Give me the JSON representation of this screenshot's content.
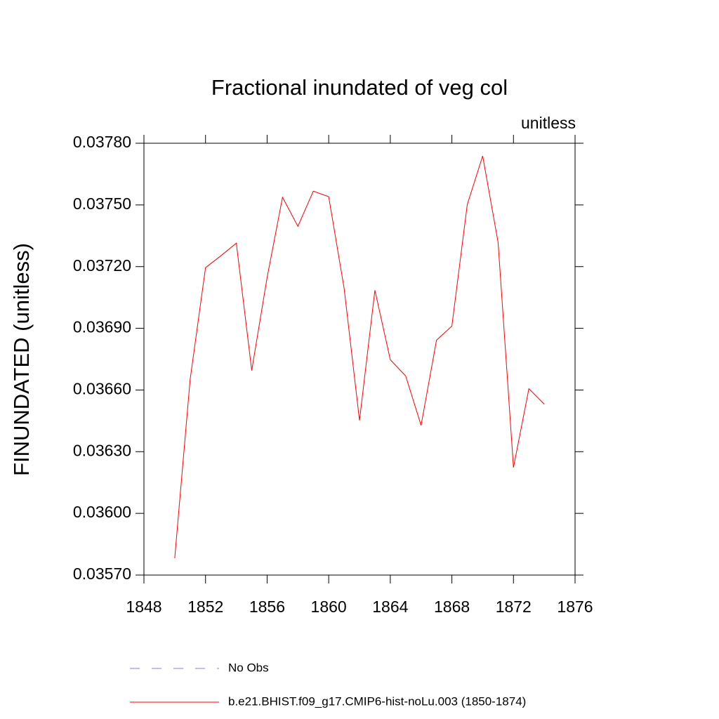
{
  "chart_data": {
    "type": "line",
    "title": "Fractional inundated of veg col",
    "subtitle": "unitless",
    "y_label": "FINUNDATED  (unitless)",
    "x": [
      1850,
      1851,
      1852,
      1853,
      1854,
      1855,
      1856,
      1857,
      1858,
      1859,
      1860,
      1861,
      1862,
      1863,
      1864,
      1865,
      1866,
      1867,
      1868,
      1869,
      1870,
      1871,
      1872,
      1873,
      1874
    ],
    "series": [
      {
        "name": "No Obs",
        "color": "#7f7fd0",
        "dashed": true,
        "values": [
          null,
          null,
          null,
          null,
          null,
          null,
          null,
          null,
          null,
          null,
          null,
          null,
          null,
          null,
          null,
          null,
          null,
          null,
          null,
          null,
          null,
          null,
          null,
          null,
          null
        ]
      },
      {
        "name": "b.e21.BHIST.f09_g17.CMIP6-hist-noLu.003 (1850-1874)",
        "color": "#ff0000",
        "dashed": false,
        "values": [
          0.035782,
          0.036651,
          0.037195,
          0.037253,
          0.037314,
          0.036695,
          0.037147,
          0.037537,
          0.037396,
          0.037567,
          0.03754,
          0.037095,
          0.036452,
          0.037085,
          0.036747,
          0.036668,
          0.036428,
          0.036842,
          0.036911,
          0.037502,
          0.037738,
          0.037318,
          0.036223,
          0.036606,
          0.036531
        ]
      }
    ],
    "xlim": [
      1848,
      1876
    ],
    "xticks": [
      1848,
      1852,
      1856,
      1860,
      1864,
      1868,
      1872,
      1876
    ],
    "ylim": [
      0.0357,
      0.0378
    ],
    "yticks": [
      {
        "value": 0.0357,
        "label": "0.03570"
      },
      {
        "value": 0.036,
        "label": "0.03600"
      },
      {
        "value": 0.0363,
        "label": "0.03630"
      },
      {
        "value": 0.0366,
        "label": "0.03660"
      },
      {
        "value": 0.0369,
        "label": "0.03690"
      },
      {
        "value": 0.0372,
        "label": "0.03720"
      },
      {
        "value": 0.0375,
        "label": "0.03750"
      },
      {
        "value": 0.0378,
        "label": "0.03780"
      }
    ],
    "grid": false
  }
}
